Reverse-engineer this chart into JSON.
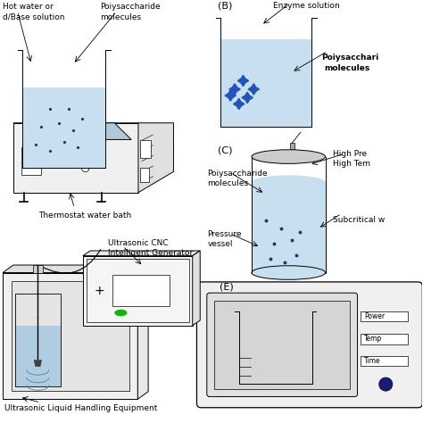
{
  "background_color": "#ffffff",
  "liquid_color_A": "#c8dff0",
  "liquid_color_B": "#c8dff0",
  "liquid_color_C": "#c8dff0",
  "dot_color": "#1a3a6a",
  "enzyme_color": "#2255bb",
  "bath_fill": "#d0e8f5",
  "panel_B_label": "(B)",
  "panel_C_label": "(C)",
  "panel_E_label": "(E)",
  "text_hot_water": "Hot water or",
  "text_base": "d/Base solution",
  "text_poly_A": "Poiysaccharide",
  "text_molecules": "molecules",
  "text_thermostat": "Thermostat water bath",
  "text_enzyme": "Enzyme solution",
  "text_poly_B1": "Poiysacchari",
  "text_poly_B2": "molecules",
  "text_highpre": "High Pre",
  "text_hightem": "High Tem",
  "text_poly_C1": "Poiysaccharide",
  "text_poly_C2": "molecules",
  "text_pressure1": "Pressure",
  "text_pressure2": "vessel",
  "text_subcritical": "Subcritical w",
  "text_ultrasonic1": "Ultrasonic CNC",
  "text_ultrasonic2": "Intelligent Generator",
  "text_liquid_equip": "Ultrasonic Liquid Handling Equipment",
  "text_power": "Power",
  "text_temp": "Temp",
  "text_time": "Time"
}
